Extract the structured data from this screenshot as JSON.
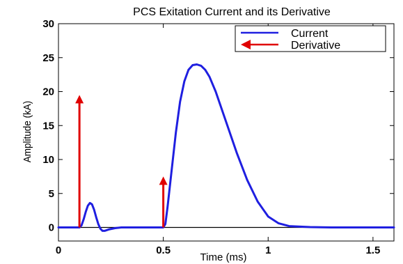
{
  "chart_data": {
    "type": "line",
    "title": "PCS Exitation Current and its Derivative",
    "xlabel": "Time (ms)",
    "ylabel": "Amplitude (kA)",
    "xlim": [
      0,
      1.6
    ],
    "ylim": [
      -2,
      30
    ],
    "xticks": [
      0,
      0.5,
      1,
      1.5
    ],
    "xtick_labels": [
      "0",
      "0.5",
      "1",
      "1.5"
    ],
    "yticks": [
      0,
      5,
      10,
      15,
      20,
      25,
      30
    ],
    "ytick_labels": [
      "0",
      "5",
      "10",
      "15",
      "20",
      "25",
      "30"
    ],
    "grid": false,
    "legend_position": "top-right",
    "series": [
      {
        "name": "Current",
        "kind": "line",
        "color": "#1f1fe0",
        "x": [
          0,
          0.1,
          0.11,
          0.12,
          0.13,
          0.14,
          0.15,
          0.16,
          0.17,
          0.18,
          0.19,
          0.2,
          0.21,
          0.22,
          0.24,
          0.27,
          0.3,
          0.35,
          0.4,
          0.45,
          0.5,
          0.51,
          0.52,
          0.54,
          0.56,
          0.58,
          0.6,
          0.62,
          0.64,
          0.66,
          0.68,
          0.7,
          0.72,
          0.75,
          0.8,
          0.85,
          0.9,
          0.95,
          1.0,
          1.05,
          1.1,
          1.2,
          1.3,
          1.4,
          1.5,
          1.6
        ],
        "y": [
          0,
          0,
          0.3,
          1.2,
          2.3,
          3.2,
          3.6,
          3.4,
          2.6,
          1.5,
          0.5,
          -0.2,
          -0.5,
          -0.5,
          -0.3,
          -0.1,
          0,
          0,
          0,
          0,
          0,
          0.5,
          3,
          8.5,
          14,
          18.5,
          21.5,
          23.2,
          23.9,
          24,
          23.8,
          23.2,
          22.2,
          20,
          15.5,
          11,
          7,
          3.8,
          1.6,
          0.6,
          0.2,
          0.05,
          0,
          0,
          0,
          0
        ]
      },
      {
        "name": "Derivative",
        "kind": "impulse-arrows",
        "color": "#e00000",
        "x": [
          0.1,
          0.5
        ],
        "y": [
          19.5,
          7.5
        ]
      }
    ]
  }
}
